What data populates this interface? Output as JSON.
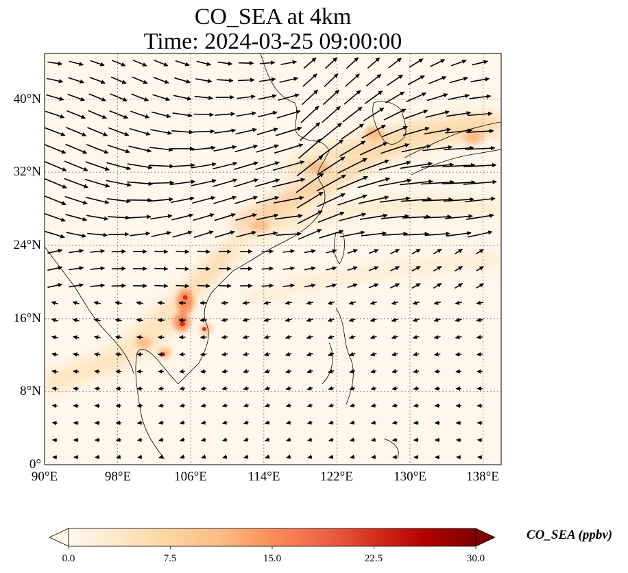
{
  "title": {
    "line1": "CO_SEA at 4km",
    "line2": "Time: 2024-03-25 09:00:00"
  },
  "map": {
    "lon_ticks": [
      "90°E",
      "98°E",
      "106°E",
      "114°E",
      "122°E",
      "130°E",
      "138°E"
    ],
    "lat_ticks": [
      "40°N",
      "32°N",
      "24°N",
      "16°N",
      "8°N",
      "0°"
    ],
    "lon_range": [
      90,
      140
    ],
    "lat_range": [
      0,
      45
    ],
    "gridlines": true,
    "gridline_style": "dotted"
  },
  "colorbar": {
    "label": "CO_SEA (ppbv)",
    "ticks": [
      "0.0",
      "7.5",
      "15.0",
      "22.5",
      "30.0"
    ],
    "range": [
      0,
      30
    ],
    "colormap": "OrRd",
    "extend": "both",
    "colors": [
      "#fff7ec",
      "#fee8c8",
      "#fdd49e",
      "#fdbb84",
      "#fc8d59",
      "#ef6548",
      "#d7301f",
      "#b30000",
      "#7f0000"
    ]
  },
  "chart_data": {
    "type": "heatmap",
    "variable": "CO_SEA",
    "units": "ppbv",
    "level": "4km",
    "time": "2024-03-25 09:00:00",
    "x_range_deg_e": [
      90,
      140
    ],
    "y_range_deg_n": [
      0,
      45
    ],
    "color_range": [
      0,
      30
    ],
    "hotspots": [
      {
        "lon": 105.5,
        "lat": 18.5,
        "value": 20
      },
      {
        "lon": 105.0,
        "lat": 15.5,
        "value": 21
      },
      {
        "lon": 107.0,
        "lat": 15.0,
        "value": 18
      },
      {
        "lon": 102.5,
        "lat": 12.0,
        "value": 18
      },
      {
        "lon": 100.5,
        "lat": 13.0,
        "value": 12
      },
      {
        "lon": 119.0,
        "lat": 31.5,
        "value": 9
      },
      {
        "lon": 126.0,
        "lat": 36.5,
        "value": 8
      },
      {
        "lon": 136.5,
        "lat": 35.5,
        "value": 8
      }
    ],
    "plumes": [
      {
        "path": [
          [
            99,
            12
          ],
          [
            106,
            17
          ],
          [
            112,
            22
          ],
          [
            118,
            27
          ],
          [
            124,
            32
          ],
          [
            131,
            36
          ],
          [
            139,
            37
          ]
        ],
        "value": 6
      },
      {
        "path": [
          [
            90,
            9
          ],
          [
            96,
            11
          ],
          [
            102,
            14
          ],
          [
            106,
            17
          ]
        ],
        "value": 4
      },
      {
        "path": [
          [
            112,
            17
          ],
          [
            120,
            21
          ],
          [
            128,
            22
          ],
          [
            138,
            24
          ]
        ],
        "value": 2
      }
    ],
    "wind_vectors": "black arrows showing westerly flow, strongest near 30-38°N"
  }
}
